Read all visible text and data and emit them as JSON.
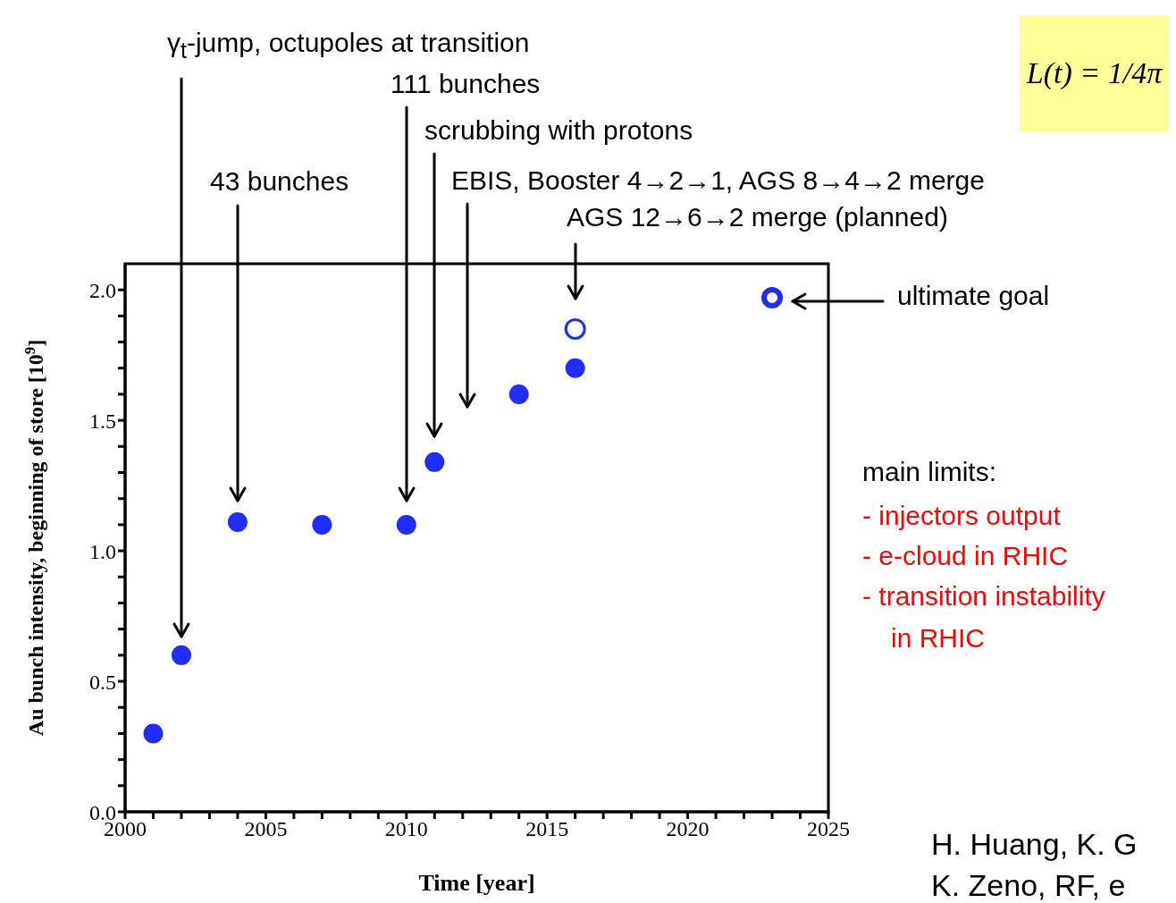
{
  "chart_data": {
    "type": "scatter",
    "xlabel": "Time [year]",
    "ylabel": "Au bunch intensity, beginning of store [10$^{9}$]",
    "xlim": [
      2000,
      2025
    ],
    "ylim": [
      0,
      2.1
    ],
    "xticks": [
      2000,
      {
        "value": 2001,
        "label": null
      },
      {
        "value": 2002,
        "label": null
      },
      {
        "value": 2003,
        "label": null
      },
      {
        "value": 2004,
        "label": null
      },
      2005,
      {
        "value": 2006,
        "label": null
      },
      {
        "value": 2007,
        "label": null
      },
      {
        "value": 2008,
        "label": null
      },
      {
        "value": 2009,
        "label": null
      },
      2010,
      {
        "value": 2011,
        "label": null
      },
      {
        "value": 2012,
        "label": null
      },
      {
        "value": 2013,
        "label": null
      },
      {
        "value": 2014,
        "label": null
      },
      2015,
      {
        "value": 2016,
        "label": null
      },
      {
        "value": 2017,
        "label": null
      },
      {
        "value": 2018,
        "label": null
      },
      {
        "value": 2019,
        "label": null
      },
      2020,
      {
        "value": 2021,
        "label": null
      },
      {
        "value": 2022,
        "label": null
      },
      {
        "value": 2023,
        "label": null
      },
      {
        "value": 2024,
        "label": null
      },
      2025
    ],
    "yticks": [
      {
        "value": 0,
        "label": "0.0"
      },
      {
        "value": 0.1,
        "label": null
      },
      {
        "value": 0.2,
        "label": null
      },
      {
        "value": 0.3,
        "label": null
      },
      {
        "value": 0.4,
        "label": null
      },
      {
        "value": 0.5,
        "label": "0.5"
      },
      {
        "value": 0.6,
        "label": null
      },
      {
        "value": 0.7,
        "label": null
      },
      {
        "value": 0.8,
        "label": null
      },
      {
        "value": 0.9,
        "label": null
      },
      {
        "value": 1,
        "label": "1.0"
      },
      {
        "value": 1.1,
        "label": null
      },
      {
        "value": 1.2,
        "label": null
      },
      {
        "value": 1.3,
        "label": null
      },
      {
        "value": 1.4,
        "label": null
      },
      {
        "value": 1.5,
        "label": "1.5"
      },
      {
        "value": 1.6,
        "label": null
      },
      {
        "value": 1.7,
        "label": null
      },
      {
        "value": 1.8,
        "label": null
      },
      {
        "value": 1.9,
        "label": null
      },
      {
        "value": 2,
        "label": "2.0"
      }
    ],
    "marker": "circle",
    "series": [
      {
        "color": "#1f2eff",
        "x": [
          2001,
          2002,
          2004,
          2007,
          2010,
          2011,
          2014,
          2016
        ],
        "values": [
          0.3,
          0.6,
          1.11,
          1.1,
          1.1,
          1.34,
          1.6,
          1.7
        ]
      },
      {
        "color": "#1f2eff",
        "x": [
          2016
        ],
        "values": [
          1.85
        ]
      },
      {
        "color": "#1f2eff",
        "x": [
          2023
        ],
        "values": [
          1.97
        ]
      }
    ],
    "annotations": [
      "γ$_{t}$-jump, octupoles at transition",
      "111 bunches",
      "scrubbing with protons",
      "43 bunches",
      "EBIS, Booster 4→2→1, AGS 8→4→2 merge",
      "AGS 12→6→2 merge (planned)",
      "L(t) = 1/4π",
      "ultimate goal",
      "main limits:",
      "- injectors output",
      "- e-cloud in RHIC",
      "- transition instability",
      "in RHIC",
      "H. Huang, K. G",
      "K. Zeno, RF, e"
    ]
  }
}
